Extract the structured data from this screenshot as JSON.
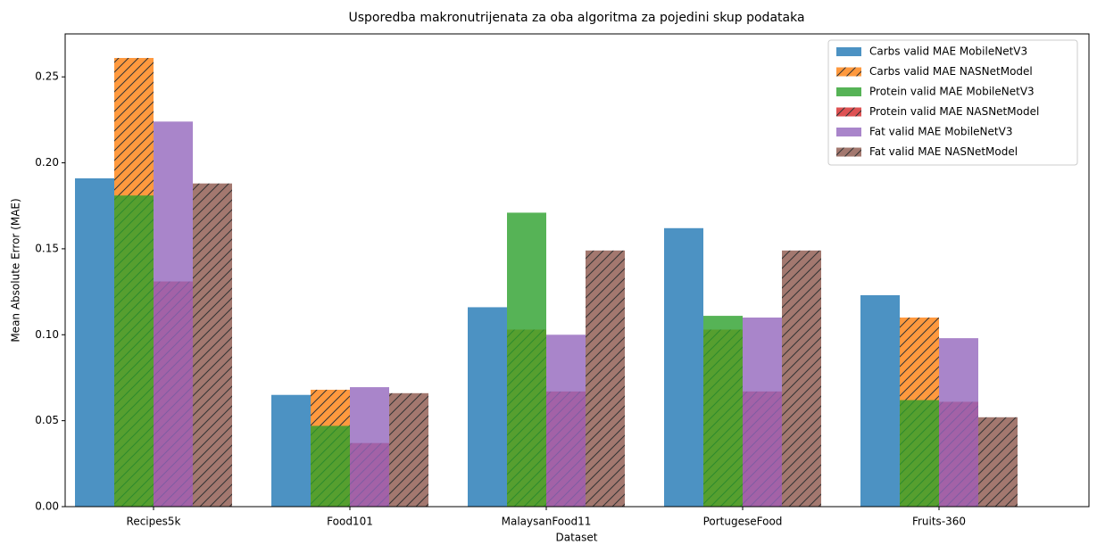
{
  "chart_data": {
    "type": "bar",
    "title": "Usporedba makronutrijenata za oba algoritma za pojedini skup podataka",
    "xlabel": "Dataset",
    "ylabel": "Mean Absolute Error (MAE)",
    "categories": [
      "Recipes5k",
      "Food101",
      "MalaysanFood11",
      "PortugeseFood",
      "Fruits-360"
    ],
    "series": [
      {
        "name": "Carbs valid MAE MobileNetV3",
        "color": "#1f77b4",
        "hatch": false,
        "values": [
          0.191,
          0.065,
          0.116,
          0.162,
          0.123
        ]
      },
      {
        "name": "Carbs valid MAE NASNetModel",
        "color": "#ff7f0e",
        "hatch": true,
        "values": [
          0.261,
          0.068,
          0.103,
          0.103,
          0.11
        ]
      },
      {
        "name": "Protein valid MAE MobileNetV3",
        "color": "#2ca02c",
        "hatch": false,
        "values": [
          0.181,
          0.047,
          0.171,
          0.111,
          0.062
        ]
      },
      {
        "name": "Protein valid MAE NASNetModel",
        "color": "#d62728",
        "hatch": true,
        "values": [
          0.131,
          0.037,
          0.067,
          0.067,
          0.061
        ]
      },
      {
        "name": "Fat valid MAE MobileNetV3",
        "color": "#9467bd",
        "hatch": false,
        "values": [
          0.224,
          0.0695,
          0.1,
          0.11,
          0.098
        ]
      },
      {
        "name": "Fat valid MAE NASNetModel",
        "color": "#8c564b",
        "hatch": true,
        "values": [
          0.188,
          0.066,
          0.149,
          0.149,
          0.052
        ]
      }
    ],
    "ylim": [
      0,
      0.275
    ],
    "yticks": [
      {
        "value": 0,
        "label": "0.00"
      },
      {
        "value": 0.05,
        "label": "0.05"
      },
      {
        "value": 0.1,
        "label": "0.10"
      },
      {
        "value": 0.15,
        "label": "0.15"
      },
      {
        "value": 0.2,
        "label": "0.20"
      },
      {
        "value": 0.25,
        "label": "0.25"
      }
    ],
    "legend": "upper right",
    "grid": false
  }
}
